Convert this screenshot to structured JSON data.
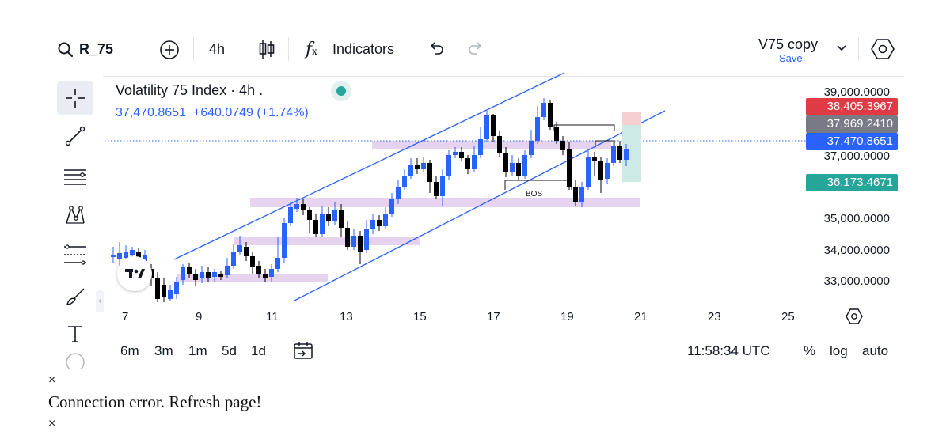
{
  "toolbar": {
    "symbol": "R_75",
    "interval": "4h",
    "indicators_label": "Indicators",
    "layout_name": "V75 copy",
    "save_label": "Save"
  },
  "legend": {
    "title": "Volatility 75 Index · 4h .",
    "price_line": "37,470.8651  +640.0749 (+1.74%)"
  },
  "price_axis": {
    "ticks": [
      "39,000.0000",
      "37,000.0000",
      "35,000.0000",
      "34,000.0000",
      "33,000.0000"
    ],
    "tags": [
      {
        "text": "38,405.3967",
        "color": "#e03a45"
      },
      {
        "text": "37,969.2410",
        "color": "#787b86"
      },
      {
        "text": "37,470.8651",
        "color": "#2962ff"
      },
      {
        "text": "36,173.4671",
        "color": "#26a69a"
      }
    ]
  },
  "time_axis": {
    "ticks": [
      "7",
      "9",
      "11",
      "13",
      "15",
      "17",
      "19",
      "21",
      "23",
      "25"
    ]
  },
  "annotation": {
    "bos_label": "BOS"
  },
  "bottombar": {
    "ranges": [
      "6m",
      "3m",
      "1m",
      "5d",
      "1d"
    ],
    "clock": "11:58:34 UTC",
    "percent_label": "%",
    "log_label": "log",
    "auto_label": "auto"
  },
  "notice": {
    "close_glyph": "×",
    "message": "Connection error. Refresh page!"
  },
  "colors": {
    "accent_blue": "#2962ff",
    "up_candle": "#2962ff",
    "down_candle": "#000000",
    "zone": "#e6d3ef",
    "stop_zone": "#f6cfd2",
    "target_zone": "#cdeae7"
  }
}
